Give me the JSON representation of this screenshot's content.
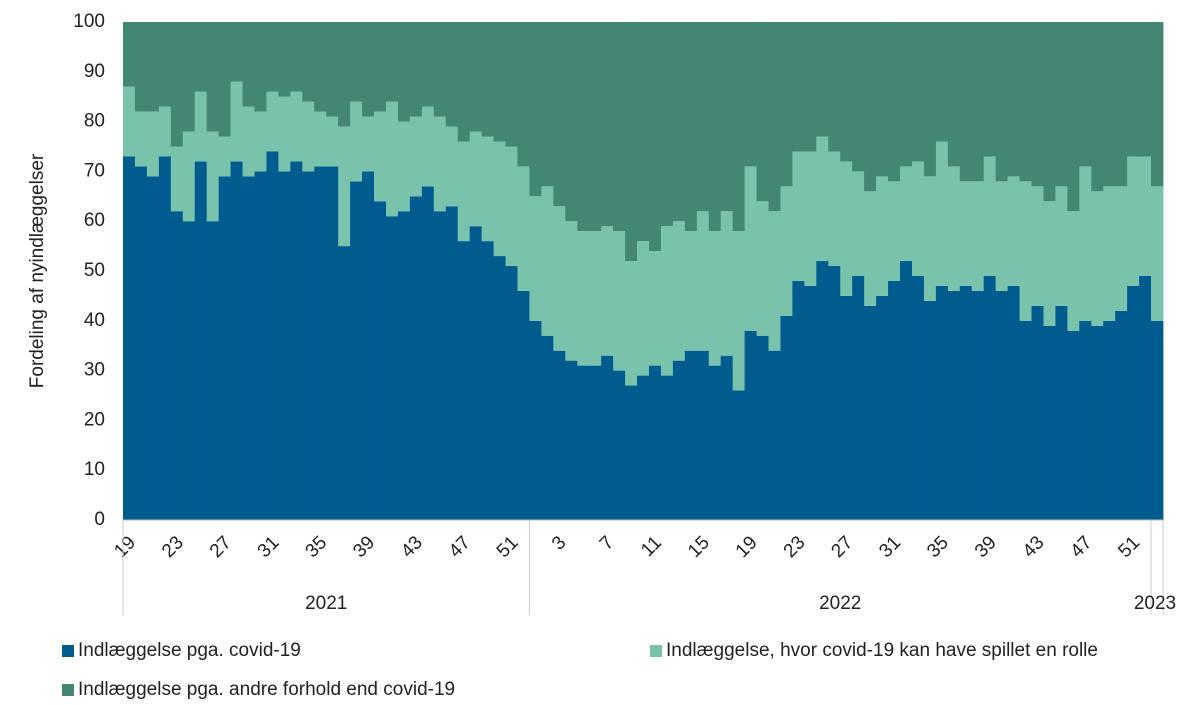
{
  "chart_data": {
    "type": "stacked_bar",
    "y_label": "Fordeling af nyindlæggelser",
    "categories": [
      "19",
      null,
      null,
      null,
      "23",
      null,
      null,
      null,
      "27",
      null,
      null,
      null,
      "31",
      null,
      null,
      null,
      "35",
      null,
      null,
      null,
      "39",
      null,
      null,
      null,
      "43",
      null,
      null,
      null,
      "47",
      null,
      null,
      null,
      "51",
      null,
      null,
      null,
      "3",
      null,
      null,
      null,
      "7",
      null,
      null,
      null,
      "11",
      null,
      null,
      null,
      "15",
      null,
      null,
      null,
      "19",
      null,
      null,
      null,
      "23",
      null,
      null,
      null,
      "27",
      null,
      null,
      null,
      "31",
      null,
      null,
      null,
      "35",
      null,
      null,
      null,
      "39",
      null,
      null,
      null,
      "43",
      null,
      null,
      null,
      "47",
      null,
      null,
      null,
      "51",
      null,
      null
    ],
    "x_groups": [
      {
        "label": "2021",
        "span": 34
      },
      {
        "label": "2022",
        "span": 52
      },
      {
        "label": "2023",
        "span": 1
      }
    ],
    "series": [
      {
        "name": "Indlæggelse pga. covid-19",
        "color": "#005b8f",
        "values": [
          73,
          71,
          69,
          73,
          62,
          60,
          72,
          60,
          69,
          72,
          69,
          70,
          74,
          70,
          72,
          70,
          71,
          71,
          55,
          68,
          70,
          64,
          61,
          62,
          65,
          67,
          62,
          63,
          56,
          59,
          56,
          53,
          51,
          46,
          40,
          37,
          34,
          32,
          31,
          31,
          33,
          30,
          27,
          29,
          31,
          29,
          32,
          34,
          34,
          31,
          33,
          26,
          38,
          37,
          34,
          41,
          48,
          47,
          52,
          51,
          45,
          49,
          43,
          45,
          48,
          52,
          49,
          44,
          47,
          46,
          47,
          46,
          49,
          46,
          47,
          40,
          43,
          39,
          43,
          38,
          40,
          39,
          40,
          42,
          47,
          49,
          40
        ]
      },
      {
        "name": "Indlæggelse, hvor covid-19 kan have spillet en rolle",
        "color": "#79c3ac",
        "values": [
          14,
          11,
          13,
          10,
          13,
          18,
          14,
          18,
          8,
          16,
          14,
          12,
          12,
          15,
          14,
          14,
          11,
          10,
          24,
          16,
          11,
          18,
          23,
          18,
          16,
          16,
          19,
          16,
          20,
          19,
          21,
          23,
          24,
          25,
          25,
          30,
          29,
          28,
          27,
          27,
          26,
          28,
          25,
          27,
          23,
          30,
          28,
          24,
          28,
          27,
          29,
          32,
          33,
          27,
          28,
          26,
          26,
          27,
          25,
          23,
          27,
          21,
          23,
          24,
          20,
          19,
          23,
          25,
          29,
          25,
          21,
          22,
          24,
          22,
          22,
          28,
          24,
          25,
          24,
          24,
          31,
          27,
          27,
          25,
          26,
          24,
          27
        ]
      },
      {
        "name": "Indlæggelse pga. andre forhold end covid-19",
        "color": "#428673",
        "values": [
          13,
          18,
          18,
          17,
          25,
          22,
          14,
          22,
          23,
          12,
          17,
          18,
          14,
          15,
          14,
          16,
          18,
          19,
          21,
          16,
          19,
          18,
          16,
          20,
          19,
          17,
          19,
          21,
          24,
          22,
          23,
          24,
          25,
          29,
          35,
          33,
          37,
          40,
          42,
          42,
          41,
          42,
          48,
          44,
          46,
          41,
          40,
          42,
          38,
          42,
          38,
          42,
          29,
          36,
          38,
          33,
          26,
          26,
          23,
          26,
          28,
          30,
          34,
          31,
          32,
          29,
          28,
          31,
          24,
          29,
          32,
          32,
          27,
          32,
          31,
          32,
          33,
          36,
          33,
          38,
          29,
          34,
          33,
          33,
          27,
          27,
          33
        ]
      }
    ],
    "ylim": [
      0,
      100
    ],
    "yticks": [
      0,
      10,
      20,
      30,
      40,
      50,
      60,
      70,
      80,
      90,
      100
    ]
  }
}
